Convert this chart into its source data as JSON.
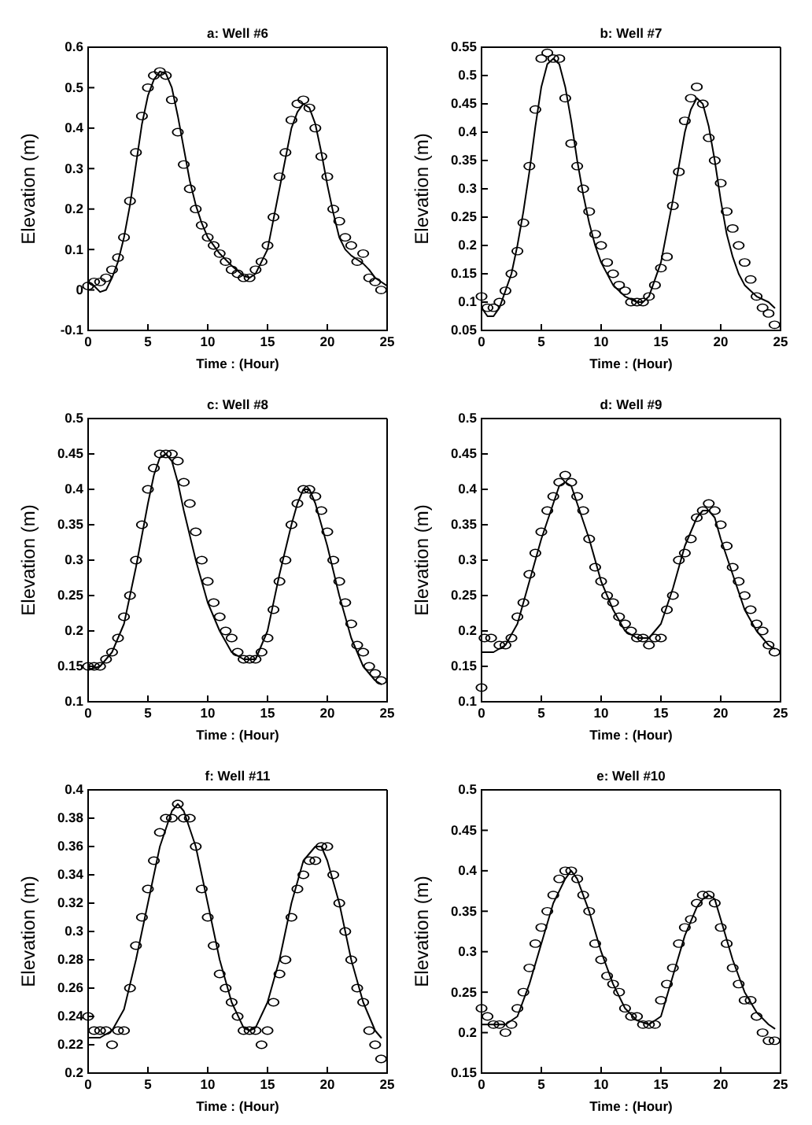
{
  "chart_data": [
    {
      "type": "line",
      "title": "a: Well #6",
      "xlabel": "Time : (Hour)",
      "ylabel": "Elevation (m)",
      "xlim": [
        0,
        25
      ],
      "xticks": [
        0,
        5,
        10,
        15,
        20,
        25
      ],
      "ylim": [
        -0.1,
        0.6
      ],
      "yticks": [
        -0.1,
        0,
        0.1,
        0.2,
        0.3,
        0.4,
        0.5,
        0.6
      ],
      "grid": false,
      "series": [
        {
          "type": "line",
          "color": "#000000",
          "marker": "none",
          "line_style": "solid",
          "x": [
            0,
            0.5,
            1,
            1.5,
            2,
            2.5,
            3,
            3.5,
            4,
            4.5,
            5,
            5.5,
            6,
            6.5,
            7,
            7.5,
            8,
            8.5,
            9,
            9.5,
            10,
            11,
            12,
            13,
            13.5,
            14,
            15,
            16,
            17,
            17.5,
            18,
            18.5,
            19,
            19.5,
            20,
            20.5,
            21,
            21.5,
            22,
            22.5,
            23,
            23.5,
            24,
            24.5,
            25
          ],
          "values": [
            0.02,
            0.01,
            -0.005,
            0,
            0.03,
            0.07,
            0.13,
            0.21,
            0.31,
            0.41,
            0.48,
            0.52,
            0.54,
            0.535,
            0.5,
            0.43,
            0.35,
            0.27,
            0.21,
            0.165,
            0.13,
            0.09,
            0.06,
            0.035,
            0.03,
            0.04,
            0.1,
            0.25,
            0.4,
            0.44,
            0.46,
            0.45,
            0.41,
            0.34,
            0.26,
            0.19,
            0.13,
            0.1,
            0.085,
            0.075,
            0.065,
            0.05,
            0.03,
            0.02,
            0.01
          ]
        },
        {
          "type": "scatter",
          "color": "#000000",
          "marker": "circle",
          "x": [
            0,
            0.5,
            1,
            1.5,
            2,
            2.5,
            3,
            3.5,
            4,
            4.5,
            5,
            5.5,
            6,
            6.5,
            7,
            7.5,
            8,
            8.5,
            9,
            9.5,
            10,
            10.5,
            11,
            11.5,
            12,
            12.5,
            13,
            13.5,
            14,
            14.5,
            15,
            15.5,
            16,
            16.5,
            17,
            17.5,
            18,
            18.5,
            19,
            19.5,
            20,
            20.5,
            21,
            21.5,
            22,
            22.5,
            23,
            23.5,
            24,
            24.5
          ],
          "values": [
            0.01,
            0.02,
            0.02,
            0.03,
            0.05,
            0.08,
            0.13,
            0.22,
            0.34,
            0.43,
            0.5,
            0.53,
            0.54,
            0.53,
            0.47,
            0.39,
            0.31,
            0.25,
            0.2,
            0.16,
            0.13,
            0.11,
            0.09,
            0.07,
            0.05,
            0.04,
            0.03,
            0.03,
            0.05,
            0.07,
            0.11,
            0.18,
            0.28,
            0.34,
            0.42,
            0.46,
            0.47,
            0.45,
            0.4,
            0.33,
            0.28,
            0.2,
            0.17,
            0.13,
            0.11,
            0.07,
            0.09,
            0.03,
            0.02,
            0
          ]
        }
      ]
    },
    {
      "type": "line",
      "title": "b: Well #7",
      "xlabel": "Time : (Hour)",
      "ylabel": "Elevation (m)",
      "xlim": [
        0,
        25
      ],
      "xticks": [
        0,
        5,
        10,
        15,
        20,
        25
      ],
      "ylim": [
        0.05,
        0.55
      ],
      "yticks": [
        0.05,
        0.1,
        0.15,
        0.2,
        0.25,
        0.3,
        0.35,
        0.4,
        0.45,
        0.5,
        0.55
      ],
      "grid": false,
      "series": [
        {
          "type": "line",
          "color": "#000000",
          "marker": "none",
          "line_style": "solid",
          "x": [
            0,
            0.5,
            1,
            1.5,
            2,
            2.5,
            3,
            3.5,
            4,
            4.5,
            5,
            5.5,
            6,
            6.5,
            7,
            7.5,
            8,
            8.5,
            9,
            9.5,
            10,
            11,
            12,
            13,
            13.5,
            14,
            15,
            16,
            17,
            17.5,
            18,
            18.5,
            19,
            19.5,
            20,
            20.5,
            21,
            21.5,
            22,
            23,
            24,
            24.5
          ],
          "values": [
            0.09,
            0.075,
            0.075,
            0.09,
            0.12,
            0.15,
            0.2,
            0.26,
            0.33,
            0.41,
            0.48,
            0.52,
            0.53,
            0.52,
            0.48,
            0.42,
            0.35,
            0.29,
            0.24,
            0.2,
            0.17,
            0.13,
            0.11,
            0.1,
            0.1,
            0.11,
            0.17,
            0.28,
            0.4,
            0.44,
            0.46,
            0.45,
            0.41,
            0.35,
            0.28,
            0.22,
            0.18,
            0.15,
            0.13,
            0.11,
            0.1,
            0.09
          ]
        },
        {
          "type": "scatter",
          "color": "#000000",
          "marker": "circle",
          "x": [
            0,
            0.5,
            1,
            1.5,
            2,
            2.5,
            3,
            3.5,
            4,
            4.5,
            5,
            5.5,
            6,
            6.5,
            7,
            7.5,
            8,
            8.5,
            9,
            9.5,
            10,
            10.5,
            11,
            11.5,
            12,
            12.5,
            13,
            13.5,
            14,
            14.5,
            15,
            15.5,
            16,
            16.5,
            17,
            17.5,
            18,
            18.5,
            19,
            19.5,
            20,
            20.5,
            21,
            21.5,
            22,
            22.5,
            23,
            23.5,
            24,
            24.5
          ],
          "values": [
            0.11,
            0.09,
            0.09,
            0.1,
            0.12,
            0.15,
            0.19,
            0.24,
            0.34,
            0.44,
            0.53,
            0.54,
            0.53,
            0.53,
            0.46,
            0.38,
            0.34,
            0.3,
            0.26,
            0.22,
            0.2,
            0.17,
            0.15,
            0.13,
            0.12,
            0.1,
            0.1,
            0.1,
            0.11,
            0.13,
            0.16,
            0.18,
            0.27,
            0.33,
            0.42,
            0.46,
            0.48,
            0.45,
            0.39,
            0.35,
            0.31,
            0.26,
            0.23,
            0.2,
            0.17,
            0.14,
            0.11,
            0.09,
            0.08,
            0.06
          ]
        }
      ]
    },
    {
      "type": "line",
      "title": "c: Well #8",
      "xlabel": "Time : (Hour)",
      "ylabel": "Elevation (m)",
      "xlim": [
        0,
        25
      ],
      "xticks": [
        0,
        5,
        10,
        15,
        20,
        25
      ],
      "ylim": [
        0.1,
        0.5
      ],
      "yticks": [
        0.1,
        0.15,
        0.2,
        0.25,
        0.3,
        0.35,
        0.4,
        0.45,
        0.5
      ],
      "grid": false,
      "series": [
        {
          "type": "line",
          "color": "#000000",
          "marker": "none",
          "line_style": "solid",
          "x": [
            0,
            1,
            1.5,
            2,
            3,
            4,
            5,
            5.5,
            6,
            6.5,
            7,
            7.5,
            8,
            9,
            10,
            11,
            12,
            13,
            14,
            15,
            16,
            17,
            17.5,
            18,
            18.5,
            19,
            20,
            21,
            22,
            23,
            24,
            24.5
          ],
          "values": [
            0.145,
            0.15,
            0.16,
            0.17,
            0.21,
            0.29,
            0.38,
            0.42,
            0.445,
            0.45,
            0.44,
            0.41,
            0.37,
            0.3,
            0.24,
            0.2,
            0.17,
            0.16,
            0.16,
            0.2,
            0.28,
            0.35,
            0.38,
            0.4,
            0.4,
            0.38,
            0.32,
            0.25,
            0.19,
            0.15,
            0.13,
            0.125
          ]
        },
        {
          "type": "scatter",
          "color": "#000000",
          "marker": "circle",
          "x": [
            0,
            0.5,
            1,
            1.5,
            2,
            2.5,
            3,
            3.5,
            4,
            4.5,
            5,
            5.5,
            6,
            6.5,
            7,
            7.5,
            8,
            8.5,
            9,
            9.5,
            10,
            10.5,
            11,
            11.5,
            12,
            12.5,
            13,
            13.5,
            14,
            14.5,
            15,
            15.5,
            16,
            16.5,
            17,
            17.5,
            18,
            18.5,
            19,
            19.5,
            20,
            20.5,
            21,
            21.5,
            22,
            22.5,
            23,
            23.5,
            24,
            24.5
          ],
          "values": [
            0.15,
            0.15,
            0.15,
            0.16,
            0.17,
            0.19,
            0.22,
            0.25,
            0.3,
            0.35,
            0.4,
            0.43,
            0.45,
            0.45,
            0.45,
            0.44,
            0.41,
            0.38,
            0.34,
            0.3,
            0.27,
            0.24,
            0.22,
            0.2,
            0.19,
            0.17,
            0.16,
            0.16,
            0.16,
            0.17,
            0.19,
            0.23,
            0.27,
            0.3,
            0.35,
            0.38,
            0.4,
            0.4,
            0.39,
            0.37,
            0.34,
            0.3,
            0.27,
            0.24,
            0.21,
            0.18,
            0.17,
            0.15,
            0.14,
            0.13
          ]
        }
      ]
    },
    {
      "type": "line",
      "title": "d: Well #9",
      "xlabel": "Time : (Hour)",
      "ylabel": "Elevation (m)",
      "xlim": [
        0,
        25
      ],
      "xticks": [
        0,
        5,
        10,
        15,
        20,
        25
      ],
      "ylim": [
        0.1,
        0.5
      ],
      "yticks": [
        0.1,
        0.15,
        0.2,
        0.25,
        0.3,
        0.35,
        0.4,
        0.45,
        0.5
      ],
      "grid": false,
      "series": [
        {
          "type": "line",
          "color": "#000000",
          "marker": "none",
          "line_style": "solid",
          "x": [
            0,
            1,
            2,
            3,
            4,
            5,
            6,
            6.5,
            7,
            7.5,
            8,
            9,
            10,
            11,
            12,
            13,
            14,
            15,
            16,
            17,
            18,
            18.5,
            19,
            19.5,
            20,
            21,
            22,
            23,
            24,
            24.5
          ],
          "values": [
            0.17,
            0.17,
            0.18,
            0.21,
            0.27,
            0.33,
            0.38,
            0.405,
            0.41,
            0.405,
            0.38,
            0.33,
            0.27,
            0.23,
            0.2,
            0.19,
            0.19,
            0.21,
            0.26,
            0.32,
            0.36,
            0.37,
            0.37,
            0.36,
            0.33,
            0.28,
            0.23,
            0.2,
            0.18,
            0.175
          ]
        },
        {
          "type": "scatter",
          "color": "#000000",
          "marker": "circle",
          "x": [
            0,
            0.25,
            0.8,
            1.5,
            2,
            2.5,
            3,
            3.5,
            4,
            4.5,
            5,
            5.5,
            6,
            6.5,
            7,
            7.5,
            8,
            8.5,
            9,
            9.5,
            10,
            10.5,
            11,
            11.5,
            12,
            12.5,
            13,
            13.5,
            14,
            14.5,
            15,
            15.5,
            16,
            16.5,
            17,
            17.5,
            18,
            18.5,
            19,
            19.5,
            20,
            20.5,
            21,
            21.5,
            22,
            22.5,
            23,
            23.5,
            24,
            24.5
          ],
          "values": [
            0.12,
            0.19,
            0.19,
            0.18,
            0.18,
            0.19,
            0.22,
            0.24,
            0.28,
            0.31,
            0.34,
            0.37,
            0.39,
            0.41,
            0.42,
            0.41,
            0.39,
            0.37,
            0.33,
            0.29,
            0.27,
            0.25,
            0.24,
            0.22,
            0.21,
            0.2,
            0.19,
            0.19,
            0.18,
            0.19,
            0.19,
            0.23,
            0.25,
            0.3,
            0.31,
            0.33,
            0.36,
            0.37,
            0.38,
            0.37,
            0.35,
            0.32,
            0.29,
            0.27,
            0.25,
            0.23,
            0.21,
            0.2,
            0.18,
            0.17
          ]
        }
      ]
    },
    {
      "type": "line",
      "title": "f: Well #11",
      "xlabel": "Time : (Hour)",
      "ylabel": "Elevation (m)",
      "xlim": [
        0,
        25
      ],
      "xticks": [
        0,
        5,
        10,
        15,
        20,
        25
      ],
      "ylim": [
        0.2,
        0.4
      ],
      "yticks": [
        0.2,
        0.22,
        0.24,
        0.26,
        0.28,
        0.3,
        0.32,
        0.34,
        0.36,
        0.38,
        0.4
      ],
      "grid": false,
      "series": [
        {
          "type": "line",
          "color": "#000000",
          "marker": "none",
          "line_style": "solid",
          "x": [
            0,
            1,
            2,
            3,
            4,
            5,
            6,
            7,
            7.5,
            8,
            9,
            10,
            11,
            12,
            13,
            13.5,
            14,
            15,
            16,
            17,
            18,
            19,
            19.5,
            20,
            21,
            22,
            23,
            24,
            24.5
          ],
          "values": [
            0.225,
            0.225,
            0.23,
            0.245,
            0.28,
            0.32,
            0.36,
            0.385,
            0.39,
            0.385,
            0.36,
            0.32,
            0.28,
            0.25,
            0.232,
            0.23,
            0.232,
            0.25,
            0.28,
            0.32,
            0.35,
            0.36,
            0.36,
            0.35,
            0.32,
            0.28,
            0.25,
            0.23,
            0.225
          ]
        },
        {
          "type": "scatter",
          "color": "#000000",
          "marker": "circle",
          "x": [
            0,
            0.5,
            1,
            1.5,
            2,
            2.5,
            3,
            3.5,
            4,
            4.5,
            5,
            5.5,
            6,
            6.5,
            7,
            7.5,
            8,
            8.5,
            9,
            9.5,
            10,
            10.5,
            11,
            11.5,
            12,
            12.5,
            13,
            13.5,
            14,
            14.5,
            15,
            15.5,
            16,
            16.5,
            17,
            17.5,
            18,
            18.5,
            19,
            19.5,
            20,
            20.5,
            21,
            21.5,
            22,
            22.5,
            23,
            23.5,
            24,
            24.5
          ],
          "values": [
            0.24,
            0.23,
            0.23,
            0.23,
            0.22,
            0.23,
            0.23,
            0.26,
            0.29,
            0.31,
            0.33,
            0.35,
            0.37,
            0.38,
            0.38,
            0.39,
            0.38,
            0.38,
            0.36,
            0.33,
            0.31,
            0.29,
            0.27,
            0.26,
            0.25,
            0.24,
            0.23,
            0.23,
            0.23,
            0.22,
            0.23,
            0.25,
            0.27,
            0.28,
            0.31,
            0.33,
            0.34,
            0.35,
            0.35,
            0.36,
            0.36,
            0.34,
            0.32,
            0.3,
            0.28,
            0.26,
            0.25,
            0.23,
            0.22,
            0.21
          ]
        }
      ]
    },
    {
      "type": "line",
      "title": "e: Well #10",
      "xlabel": "Time : (Hour)",
      "ylabel": "Elevation (m)",
      "xlim": [
        0,
        25
      ],
      "xticks": [
        0,
        5,
        10,
        15,
        20,
        25
      ],
      "ylim": [
        0.15,
        0.5
      ],
      "yticks": [
        0.15,
        0.2,
        0.25,
        0.3,
        0.35,
        0.4,
        0.45,
        0.5
      ],
      "grid": false,
      "series": [
        {
          "type": "line",
          "color": "#000000",
          "marker": "none",
          "line_style": "solid",
          "x": [
            0,
            1,
            2,
            3,
            4,
            5,
            6,
            7,
            7.5,
            8,
            9,
            10,
            11,
            12,
            13,
            14,
            15,
            16,
            17,
            18,
            18.5,
            19,
            19.5,
            20,
            21,
            22,
            23,
            24,
            24.5
          ],
          "values": [
            0.21,
            0.21,
            0.21,
            0.22,
            0.26,
            0.31,
            0.36,
            0.39,
            0.4,
            0.39,
            0.35,
            0.3,
            0.26,
            0.23,
            0.215,
            0.21,
            0.22,
            0.27,
            0.32,
            0.355,
            0.365,
            0.37,
            0.365,
            0.34,
            0.29,
            0.25,
            0.225,
            0.21,
            0.205
          ]
        },
        {
          "type": "scatter",
          "color": "#000000",
          "marker": "circle",
          "x": [
            0,
            0.5,
            1,
            1.5,
            2,
            2.5,
            3,
            3.5,
            4,
            4.5,
            5,
            5.5,
            6,
            6.5,
            7,
            7.5,
            8,
            8.5,
            9,
            9.5,
            10,
            10.5,
            11,
            11.5,
            12,
            12.5,
            13,
            13.5,
            14,
            14.5,
            15,
            15.5,
            16,
            16.5,
            17,
            17.5,
            18,
            18.5,
            19,
            19.5,
            20,
            20.5,
            21,
            21.5,
            22,
            22.5,
            23,
            23.5,
            24,
            24.5
          ],
          "values": [
            0.23,
            0.22,
            0.21,
            0.21,
            0.2,
            0.21,
            0.23,
            0.25,
            0.28,
            0.31,
            0.33,
            0.35,
            0.37,
            0.39,
            0.4,
            0.4,
            0.39,
            0.37,
            0.35,
            0.31,
            0.29,
            0.27,
            0.26,
            0.25,
            0.23,
            0.22,
            0.22,
            0.21,
            0.21,
            0.21,
            0.24,
            0.26,
            0.28,
            0.31,
            0.33,
            0.34,
            0.36,
            0.37,
            0.37,
            0.36,
            0.33,
            0.31,
            0.28,
            0.26,
            0.24,
            0.24,
            0.22,
            0.2,
            0.19,
            0.19
          ]
        }
      ]
    }
  ]
}
